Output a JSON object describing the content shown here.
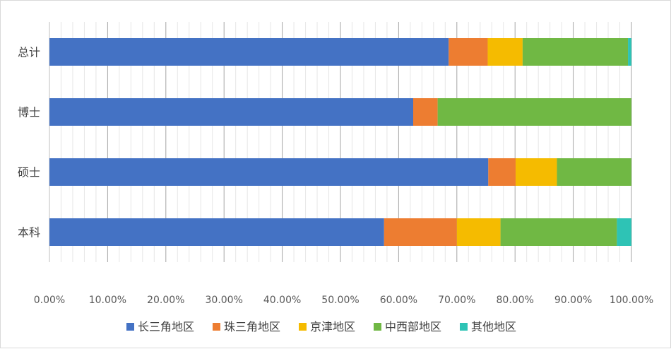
{
  "chart_data": {
    "type": "bar",
    "orientation": "horizontal",
    "stacked": "percent",
    "categories": [
      "总计",
      "博士",
      "硕士",
      "本科"
    ],
    "series": [
      {
        "name": "长三角地区",
        "color": "#4472C4",
        "values": [
          68.6,
          62.5,
          75.4,
          57.5
        ]
      },
      {
        "name": "珠三角地区",
        "color": "#ED7D31",
        "values": [
          6.7,
          4.2,
          4.7,
          12.5
        ]
      },
      {
        "name": "京津地区",
        "color": "#F5BB00",
        "values": [
          6.0,
          0.0,
          7.1,
          7.5
        ]
      },
      {
        "name": "中西部地区",
        "color": "#70B844",
        "values": [
          18.1,
          33.3,
          12.8,
          20.0
        ]
      },
      {
        "name": "其他地区",
        "color": "#2EC3B5",
        "values": [
          0.6,
          0.0,
          0.0,
          2.5
        ]
      }
    ],
    "xlim": [
      0,
      100
    ],
    "xticks": [
      "0.00%",
      "10.00%",
      "20.00%",
      "30.00%",
      "40.00%",
      "50.00%",
      "60.00%",
      "70.00%",
      "80.00%",
      "90.00%",
      "100.00%"
    ],
    "grid": true,
    "legend": "bottom"
  }
}
